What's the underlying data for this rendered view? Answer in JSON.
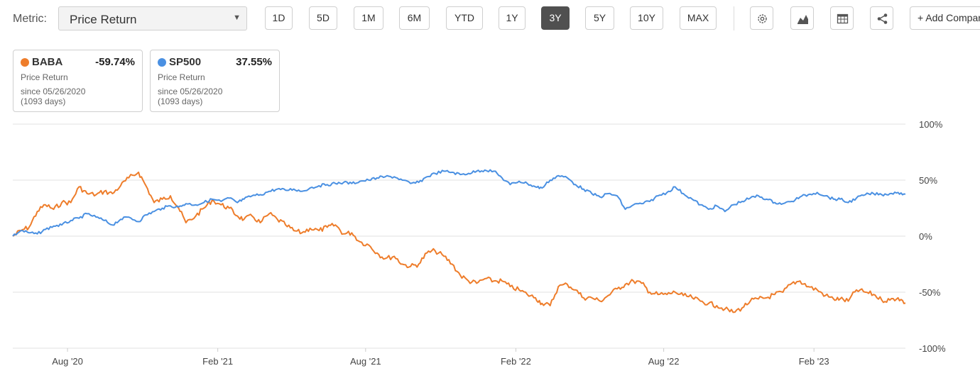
{
  "toolbar": {
    "metric_label": "Metric:",
    "metric_value": "Price Return",
    "ranges": [
      {
        "label": "1D",
        "active": false
      },
      {
        "label": "5D",
        "active": false
      },
      {
        "label": "1M",
        "active": false
      },
      {
        "label": "6M",
        "active": false
      },
      {
        "label": "YTD",
        "active": false
      },
      {
        "label": "1Y",
        "active": false
      },
      {
        "label": "3Y",
        "active": true
      },
      {
        "label": "5Y",
        "active": false
      },
      {
        "label": "10Y",
        "active": false
      },
      {
        "label": "MAX",
        "active": false
      }
    ],
    "icons": [
      "gear-icon",
      "area-chart-icon",
      "table-icon",
      "share-icon"
    ],
    "add_label": "+ Add Comparison"
  },
  "cards": [
    {
      "ticker": "BABA",
      "value": "-59.74%",
      "metric": "Price Return",
      "since": "since 05/26/2020",
      "days": "(1093 days)",
      "color": "#ee7d2b"
    },
    {
      "ticker": "SP500",
      "value": "37.55%",
      "metric": "Price Return",
      "since": "since 05/26/2020",
      "days": "(1093 days)",
      "color": "#4a90e2"
    }
  ],
  "chart_data": {
    "type": "line",
    "title": "",
    "xlabel": "",
    "ylabel": "",
    "x_start": "2020-05-26",
    "x_end": "2023-05-24",
    "ylim": [
      -100,
      100
    ],
    "y_ticks": [
      {
        "value": 100,
        "label": "100%"
      },
      {
        "value": 50,
        "label": "50%"
      },
      {
        "value": 0,
        "label": "0%"
      },
      {
        "value": -50,
        "label": "-50%"
      },
      {
        "value": -100,
        "label": "-100%"
      }
    ],
    "x_ticks": [
      {
        "date": "2020-08-01",
        "label": "Aug '20"
      },
      {
        "date": "2021-02-01",
        "label": "Feb '21"
      },
      {
        "date": "2021-08-01",
        "label": "Aug '21"
      },
      {
        "date": "2022-02-01",
        "label": "Feb '22"
      },
      {
        "date": "2022-08-01",
        "label": "Aug '22"
      },
      {
        "date": "2023-02-01",
        "label": "Feb '23"
      }
    ],
    "grid": true,
    "legend": "none",
    "series": [
      {
        "name": "BABA",
        "color": "#ee7d2b",
        "points": [
          [
            "2020-05-26",
            0
          ],
          [
            "2020-06-05",
            5
          ],
          [
            "2020-06-15",
            8
          ],
          [
            "2020-06-25",
            22
          ],
          [
            "2020-07-05",
            28
          ],
          [
            "2020-07-15",
            24
          ],
          [
            "2020-07-25",
            30
          ],
          [
            "2020-08-05",
            30
          ],
          [
            "2020-08-15",
            44
          ],
          [
            "2020-08-25",
            38
          ],
          [
            "2020-09-05",
            37
          ],
          [
            "2020-09-15",
            40
          ],
          [
            "2020-09-25",
            38
          ],
          [
            "2020-10-05",
            45
          ],
          [
            "2020-10-15",
            52
          ],
          [
            "2020-10-27",
            57
          ],
          [
            "2020-11-05",
            45
          ],
          [
            "2020-11-15",
            30
          ],
          [
            "2020-11-25",
            33
          ],
          [
            "2020-12-05",
            36
          ],
          [
            "2020-12-15",
            25
          ],
          [
            "2020-12-24",
            12
          ],
          [
            "2021-01-05",
            18
          ],
          [
            "2021-01-15",
            25
          ],
          [
            "2021-01-25",
            32
          ],
          [
            "2021-02-05",
            28
          ],
          [
            "2021-02-15",
            25
          ],
          [
            "2021-02-25",
            18
          ],
          [
            "2021-03-05",
            15
          ],
          [
            "2021-03-15",
            18
          ],
          [
            "2021-03-25",
            12
          ],
          [
            "2021-04-05",
            20
          ],
          [
            "2021-04-15",
            15
          ],
          [
            "2021-04-25",
            10
          ],
          [
            "2021-05-05",
            5
          ],
          [
            "2021-05-15",
            3
          ],
          [
            "2021-05-25",
            7
          ],
          [
            "2021-06-05",
            5
          ],
          [
            "2021-06-15",
            8
          ],
          [
            "2021-06-25",
            10
          ],
          [
            "2021-07-05",
            2
          ],
          [
            "2021-07-15",
            3
          ],
          [
            "2021-07-25",
            -5
          ],
          [
            "2021-08-05",
            -8
          ],
          [
            "2021-08-15",
            -15
          ],
          [
            "2021-08-25",
            -20
          ],
          [
            "2021-09-05",
            -18
          ],
          [
            "2021-09-15",
            -25
          ],
          [
            "2021-09-25",
            -27
          ],
          [
            "2021-10-05",
            -25
          ],
          [
            "2021-10-15",
            -15
          ],
          [
            "2021-10-25",
            -13
          ],
          [
            "2021-11-05",
            -18
          ],
          [
            "2021-11-15",
            -25
          ],
          [
            "2021-11-25",
            -35
          ],
          [
            "2021-12-05",
            -40
          ],
          [
            "2021-12-15",
            -42
          ],
          [
            "2021-12-25",
            -38
          ],
          [
            "2022-01-05",
            -40
          ],
          [
            "2022-01-15",
            -40
          ],
          [
            "2022-01-25",
            -45
          ],
          [
            "2022-02-05",
            -48
          ],
          [
            "2022-02-15",
            -52
          ],
          [
            "2022-02-25",
            -55
          ],
          [
            "2022-03-05",
            -60
          ],
          [
            "2022-03-15",
            -62
          ],
          [
            "2022-03-25",
            -45
          ],
          [
            "2022-04-05",
            -43
          ],
          [
            "2022-04-15",
            -48
          ],
          [
            "2022-04-25",
            -55
          ],
          [
            "2022-05-05",
            -55
          ],
          [
            "2022-05-15",
            -58
          ],
          [
            "2022-05-25",
            -53
          ],
          [
            "2022-06-05",
            -47
          ],
          [
            "2022-06-15",
            -43
          ],
          [
            "2022-06-25",
            -40
          ],
          [
            "2022-07-05",
            -42
          ],
          [
            "2022-07-15",
            -50
          ],
          [
            "2022-07-25",
            -52
          ],
          [
            "2022-08-05",
            -52
          ],
          [
            "2022-08-15",
            -50
          ],
          [
            "2022-08-25",
            -53
          ],
          [
            "2022-09-05",
            -55
          ],
          [
            "2022-09-15",
            -58
          ],
          [
            "2022-09-25",
            -60
          ],
          [
            "2022-10-05",
            -62
          ],
          [
            "2022-10-15",
            -65
          ],
          [
            "2022-10-25",
            -68
          ],
          [
            "2022-11-05",
            -64
          ],
          [
            "2022-11-15",
            -58
          ],
          [
            "2022-11-25",
            -56
          ],
          [
            "2022-12-05",
            -55
          ],
          [
            "2022-12-15",
            -52
          ],
          [
            "2022-12-25",
            -50
          ],
          [
            "2023-01-05",
            -42
          ],
          [
            "2023-01-15",
            -40
          ],
          [
            "2023-01-25",
            -45
          ],
          [
            "2023-02-05",
            -48
          ],
          [
            "2023-02-15",
            -53
          ],
          [
            "2023-02-25",
            -56
          ],
          [
            "2023-03-05",
            -56
          ],
          [
            "2023-03-15",
            -58
          ],
          [
            "2023-03-25",
            -48
          ],
          [
            "2023-04-05",
            -50
          ],
          [
            "2023-04-15",
            -52
          ],
          [
            "2023-04-25",
            -57
          ],
          [
            "2023-05-05",
            -57
          ],
          [
            "2023-05-15",
            -55
          ],
          [
            "2023-05-24",
            -59.74
          ]
        ]
      },
      {
        "name": "SP500",
        "color": "#4a90e2",
        "points": [
          [
            "2020-05-26",
            0
          ],
          [
            "2020-06-05",
            5
          ],
          [
            "2020-06-15",
            3
          ],
          [
            "2020-06-25",
            2
          ],
          [
            "2020-07-05",
            6
          ],
          [
            "2020-07-15",
            9
          ],
          [
            "2020-07-25",
            10
          ],
          [
            "2020-08-05",
            14
          ],
          [
            "2020-08-15",
            16
          ],
          [
            "2020-08-25",
            20
          ],
          [
            "2020-09-05",
            17
          ],
          [
            "2020-09-15",
            14
          ],
          [
            "2020-09-25",
            10
          ],
          [
            "2020-10-05",
            15
          ],
          [
            "2020-10-15",
            17
          ],
          [
            "2020-10-27",
            13
          ],
          [
            "2020-11-05",
            19
          ],
          [
            "2020-11-15",
            22
          ],
          [
            "2020-11-25",
            25
          ],
          [
            "2020-12-05",
            27
          ],
          [
            "2020-12-15",
            26
          ],
          [
            "2020-12-24",
            29
          ],
          [
            "2021-01-05",
            28
          ],
          [
            "2021-01-15",
            30
          ],
          [
            "2021-01-25",
            33
          ],
          [
            "2021-02-05",
            31
          ],
          [
            "2021-02-15",
            34
          ],
          [
            "2021-02-25",
            30
          ],
          [
            "2021-03-05",
            33
          ],
          [
            "2021-03-15",
            36
          ],
          [
            "2021-03-25",
            37
          ],
          [
            "2021-04-05",
            40
          ],
          [
            "2021-04-15",
            42
          ],
          [
            "2021-04-25",
            41
          ],
          [
            "2021-05-05",
            42
          ],
          [
            "2021-05-15",
            40
          ],
          [
            "2021-05-25",
            43
          ],
          [
            "2021-06-05",
            45
          ],
          [
            "2021-06-15",
            46
          ],
          [
            "2021-06-25",
            47
          ],
          [
            "2021-07-05",
            48
          ],
          [
            "2021-07-15",
            47
          ],
          [
            "2021-07-25",
            49
          ],
          [
            "2021-08-05",
            50
          ],
          [
            "2021-08-15",
            52
          ],
          [
            "2021-08-25",
            53
          ],
          [
            "2021-09-05",
            53
          ],
          [
            "2021-09-15",
            50
          ],
          [
            "2021-09-25",
            47
          ],
          [
            "2021-10-05",
            48
          ],
          [
            "2021-10-15",
            53
          ],
          [
            "2021-10-25",
            56
          ],
          [
            "2021-11-05",
            58
          ],
          [
            "2021-11-15",
            57
          ],
          [
            "2021-11-25",
            55
          ],
          [
            "2021-12-05",
            56
          ],
          [
            "2021-12-15",
            58
          ],
          [
            "2021-12-25",
            59
          ],
          [
            "2022-01-05",
            58
          ],
          [
            "2022-01-15",
            52
          ],
          [
            "2022-01-25",
            46
          ],
          [
            "2022-02-05",
            49
          ],
          [
            "2022-02-15",
            47
          ],
          [
            "2022-02-25",
            44
          ],
          [
            "2022-03-05",
            43
          ],
          [
            "2022-03-15",
            50
          ],
          [
            "2022-03-25",
            54
          ],
          [
            "2022-04-05",
            52
          ],
          [
            "2022-04-15",
            46
          ],
          [
            "2022-04-25",
            42
          ],
          [
            "2022-05-05",
            38
          ],
          [
            "2022-05-15",
            35
          ],
          [
            "2022-05-25",
            38
          ],
          [
            "2022-06-05",
            36
          ],
          [
            "2022-06-15",
            24
          ],
          [
            "2022-06-25",
            28
          ],
          [
            "2022-07-05",
            29
          ],
          [
            "2022-07-15",
            31
          ],
          [
            "2022-07-25",
            36
          ],
          [
            "2022-08-05",
            39
          ],
          [
            "2022-08-15",
            44
          ],
          [
            "2022-08-25",
            38
          ],
          [
            "2022-09-05",
            33
          ],
          [
            "2022-09-15",
            28
          ],
          [
            "2022-09-25",
            24
          ],
          [
            "2022-10-05",
            27
          ],
          [
            "2022-10-15",
            22
          ],
          [
            "2022-10-25",
            28
          ],
          [
            "2022-11-05",
            31
          ],
          [
            "2022-11-15",
            34
          ],
          [
            "2022-11-25",
            36
          ],
          [
            "2022-12-05",
            33
          ],
          [
            "2022-12-15",
            30
          ],
          [
            "2022-12-25",
            29
          ],
          [
            "2023-01-05",
            31
          ],
          [
            "2023-01-15",
            35
          ],
          [
            "2023-01-25",
            37
          ],
          [
            "2023-02-05",
            39
          ],
          [
            "2023-02-15",
            36
          ],
          [
            "2023-02-25",
            33
          ],
          [
            "2023-03-05",
            33
          ],
          [
            "2023-03-15",
            30
          ],
          [
            "2023-03-25",
            34
          ],
          [
            "2023-04-05",
            37
          ],
          [
            "2023-04-15",
            38
          ],
          [
            "2023-04-25",
            37
          ],
          [
            "2023-05-05",
            38
          ],
          [
            "2023-05-15",
            39
          ],
          [
            "2023-05-24",
            37.55
          ]
        ]
      }
    ]
  }
}
